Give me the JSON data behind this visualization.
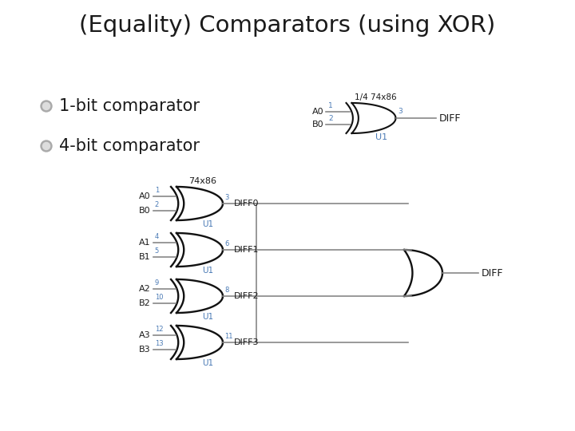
{
  "title": "(Equality) Comparators (using XOR)",
  "bg_color": "#ffffff",
  "title_fontsize": 21,
  "label_color_black": "#1a1a1a",
  "label_color_blue": "#4a7ab5",
  "line_color": "#888888",
  "gate_line_color": "#111111",
  "xor_label": "74x86",
  "xor_label_small": "1/4 74x86",
  "diff_text": "DIFF",
  "diff0_text": "DIFF0",
  "diff1_text": "DIFF1",
  "diff2_text": "DIFF2",
  "diff3_text": "DIFF3",
  "u1_text": "U1",
  "bullet1_text": "1-bit comparator",
  "bullet2_text": "4-bit comparator",
  "bullet_fontsize": 15
}
